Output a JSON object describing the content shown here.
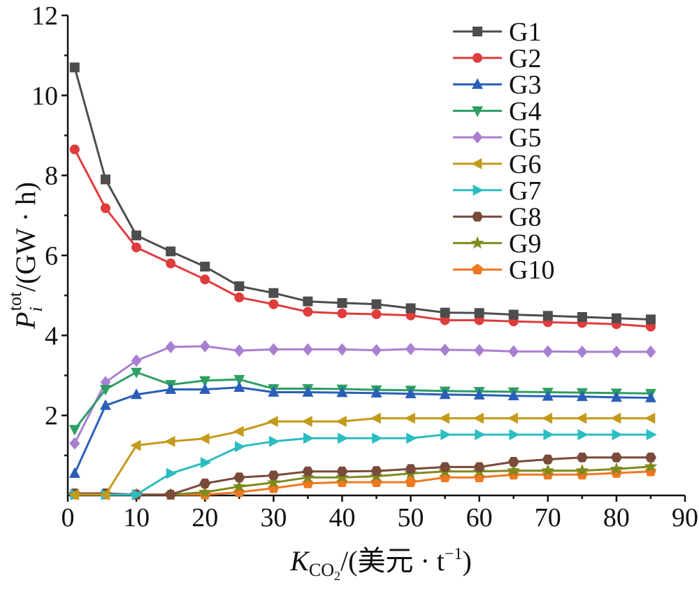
{
  "chart_data": {
    "type": "line",
    "xlim": [
      0,
      90
    ],
    "ylim": [
      0,
      12
    ],
    "xticks": [
      0,
      10,
      20,
      30,
      40,
      50,
      60,
      70,
      80,
      90
    ],
    "yticks": [
      2,
      4,
      6,
      8,
      10,
      12
    ],
    "grid": false,
    "legend_position": "top-right",
    "xlabel": {
      "main": "K",
      "sub": "CO",
      "subsub": "2",
      "rest": "/(美元 · t",
      "sup": "−1",
      "end": ")"
    },
    "ylabel": {
      "main": "P",
      "sub": "i",
      "sup": "tot",
      "rest": "/(GW · h)"
    },
    "x": [
      1,
      5.5,
      10,
      15,
      20,
      25,
      30,
      35,
      40,
      45,
      50,
      55,
      60,
      65,
      70,
      75,
      80,
      85
    ],
    "series": [
      {
        "name": "G1",
        "color": "#4d4d4d",
        "marker": "square",
        "values": [
          10.7,
          7.9,
          6.5,
          6.1,
          5.72,
          5.23,
          5.06,
          4.85,
          4.81,
          4.78,
          4.68,
          4.57,
          4.56,
          4.52,
          4.49,
          4.46,
          4.43,
          4.4
        ]
      },
      {
        "name": "G2",
        "color": "#e03c3c",
        "marker": "circle",
        "values": [
          8.65,
          7.18,
          6.2,
          5.8,
          5.4,
          4.95,
          4.78,
          4.59,
          4.55,
          4.53,
          4.5,
          4.38,
          4.38,
          4.35,
          4.33,
          4.31,
          4.28,
          4.22
        ]
      },
      {
        "name": "G3",
        "color": "#2a5fb8",
        "marker": "triangle-up",
        "values": [
          0.55,
          2.25,
          2.52,
          2.65,
          2.65,
          2.7,
          2.58,
          2.58,
          2.57,
          2.56,
          2.54,
          2.52,
          2.51,
          2.49,
          2.48,
          2.47,
          2.45,
          2.44
        ]
      },
      {
        "name": "G4",
        "color": "#2e9e63",
        "marker": "triangle-down",
        "values": [
          1.65,
          2.65,
          3.08,
          2.77,
          2.87,
          2.9,
          2.67,
          2.67,
          2.66,
          2.64,
          2.63,
          2.61,
          2.6,
          2.59,
          2.58,
          2.57,
          2.56,
          2.55
        ]
      },
      {
        "name": "G5",
        "color": "#a87fd1",
        "marker": "diamond",
        "values": [
          1.3,
          2.83,
          3.37,
          3.71,
          3.73,
          3.62,
          3.65,
          3.65,
          3.65,
          3.63,
          3.66,
          3.64,
          3.63,
          3.6,
          3.6,
          3.59,
          3.59,
          3.59
        ]
      },
      {
        "name": "G6",
        "color": "#c49a1a",
        "marker": "triangle-left",
        "values": [
          0.02,
          0.02,
          1.25,
          1.35,
          1.42,
          1.6,
          1.85,
          1.85,
          1.85,
          1.93,
          1.93,
          1.93,
          1.93,
          1.93,
          1.93,
          1.93,
          1.93,
          1.93
        ]
      },
      {
        "name": "G7",
        "color": "#2bbdc2",
        "marker": "triangle-right",
        "values": [
          0.02,
          0.02,
          0.02,
          0.55,
          0.82,
          1.22,
          1.35,
          1.43,
          1.43,
          1.43,
          1.43,
          1.52,
          1.52,
          1.52,
          1.52,
          1.52,
          1.52,
          1.52
        ]
      },
      {
        "name": "G8",
        "color": "#7a4a3a",
        "marker": "hexagon",
        "values": [
          0.05,
          0.05,
          0.02,
          0.02,
          0.3,
          0.45,
          0.5,
          0.6,
          0.6,
          0.61,
          0.66,
          0.71,
          0.71,
          0.84,
          0.9,
          0.95,
          0.95,
          0.95
        ]
      },
      {
        "name": "G9",
        "color": "#7e8a1e",
        "marker": "star",
        "values": [
          0.02,
          0.02,
          0.02,
          0.02,
          0.08,
          0.22,
          0.32,
          0.45,
          0.45,
          0.48,
          0.55,
          0.6,
          0.6,
          0.62,
          0.62,
          0.62,
          0.66,
          0.72
        ]
      },
      {
        "name": "G10",
        "color": "#f07820",
        "marker": "pentagon",
        "values": [
          0.02,
          0.02,
          0.02,
          0.02,
          0.02,
          0.08,
          0.18,
          0.3,
          0.33,
          0.33,
          0.33,
          0.45,
          0.45,
          0.52,
          0.52,
          0.52,
          0.56,
          0.6
        ]
      }
    ]
  }
}
